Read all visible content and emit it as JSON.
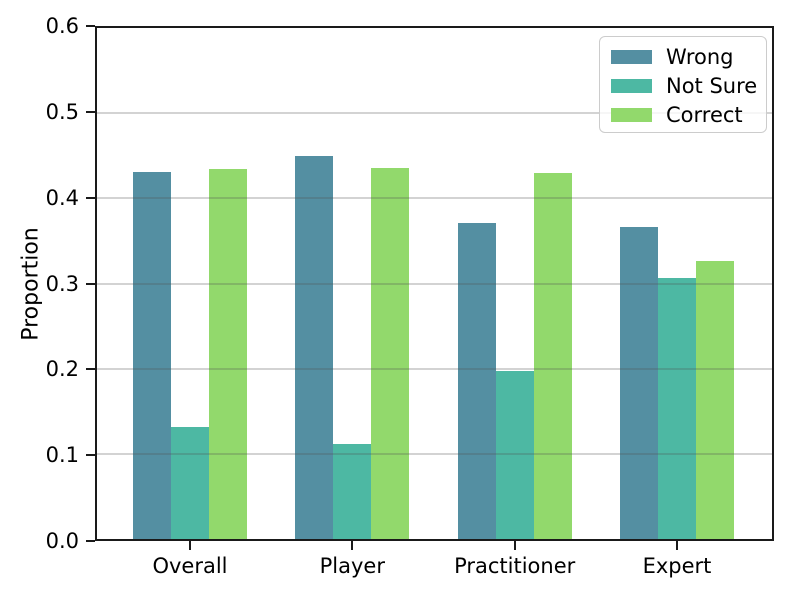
{
  "chart_data": {
    "type": "bar",
    "title": "",
    "categories": [
      "Overall",
      "Player",
      "Practitioner",
      "Expert"
    ],
    "series": [
      {
        "name": "Wrong",
        "color": "#548fa2",
        "values": [
          0.431,
          0.45,
          0.371,
          0.366
        ]
      },
      {
        "name": "Not Sure",
        "color": "#4db8a3",
        "values": [
          0.131,
          0.112,
          0.197,
          0.306
        ]
      },
      {
        "name": "Correct",
        "color": "#92d96c",
        "values": [
          0.435,
          0.436,
          0.43,
          0.326
        ]
      }
    ],
    "xlabel": "",
    "ylabel": "Proportion",
    "ylim": [
      0,
      0.6
    ],
    "yticks": [
      0.0,
      0.1,
      0.2,
      0.3,
      0.4,
      0.5,
      0.6
    ],
    "ytick_labels": [
      "0.0",
      "0.1",
      "0.2",
      "0.3",
      "0.4",
      "0.5",
      "0.6"
    ],
    "grid": true,
    "grid_axis": "y",
    "legend_position": "upper right",
    "axis_color": "#1a1a1a",
    "grid_color": "rgba(80,80,80,0.25)"
  }
}
